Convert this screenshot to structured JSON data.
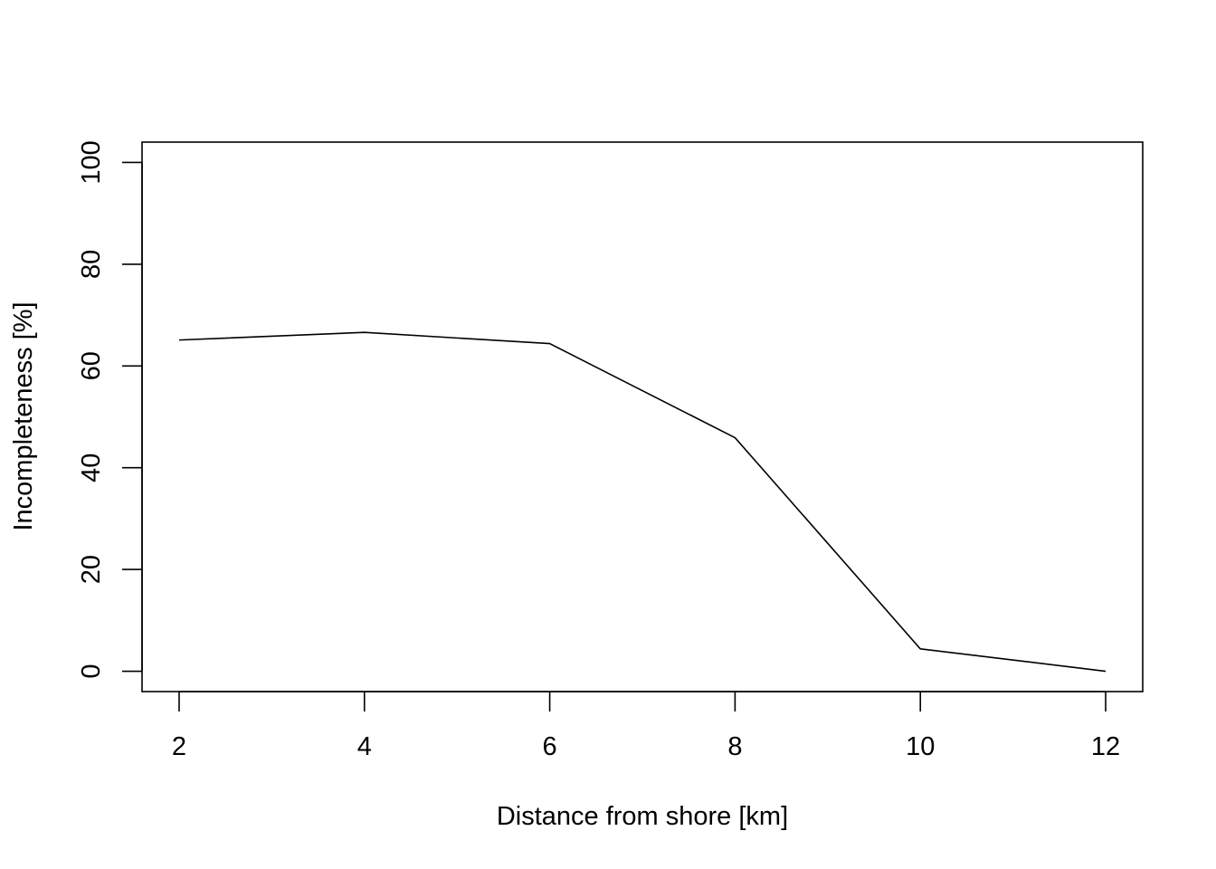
{
  "chart_data": {
    "type": "line",
    "title": "",
    "xlabel": "Distance from shore [km]",
    "ylabel": "Incompleteness [%]",
    "x": [
      2,
      4,
      6,
      8,
      10,
      12
    ],
    "series": [
      {
        "values": [
          65.1,
          66.6,
          64.4,
          45.9,
          4.4,
          0.0
        ]
      }
    ],
    "xlim": [
      1.6,
      12.4
    ],
    "ylim": [
      -4,
      104
    ],
    "xticks": [
      2,
      4,
      6,
      8,
      10,
      12
    ],
    "yticks": [
      0,
      20,
      40,
      60,
      80,
      100
    ],
    "xtick_labels": [
      "2",
      "4",
      "6",
      "8",
      "10",
      "12"
    ],
    "ytick_labels": [
      "0",
      "20",
      "40",
      "60",
      "80",
      "100"
    ],
    "grid": false,
    "legend": "none",
    "line_color": "#000000"
  }
}
